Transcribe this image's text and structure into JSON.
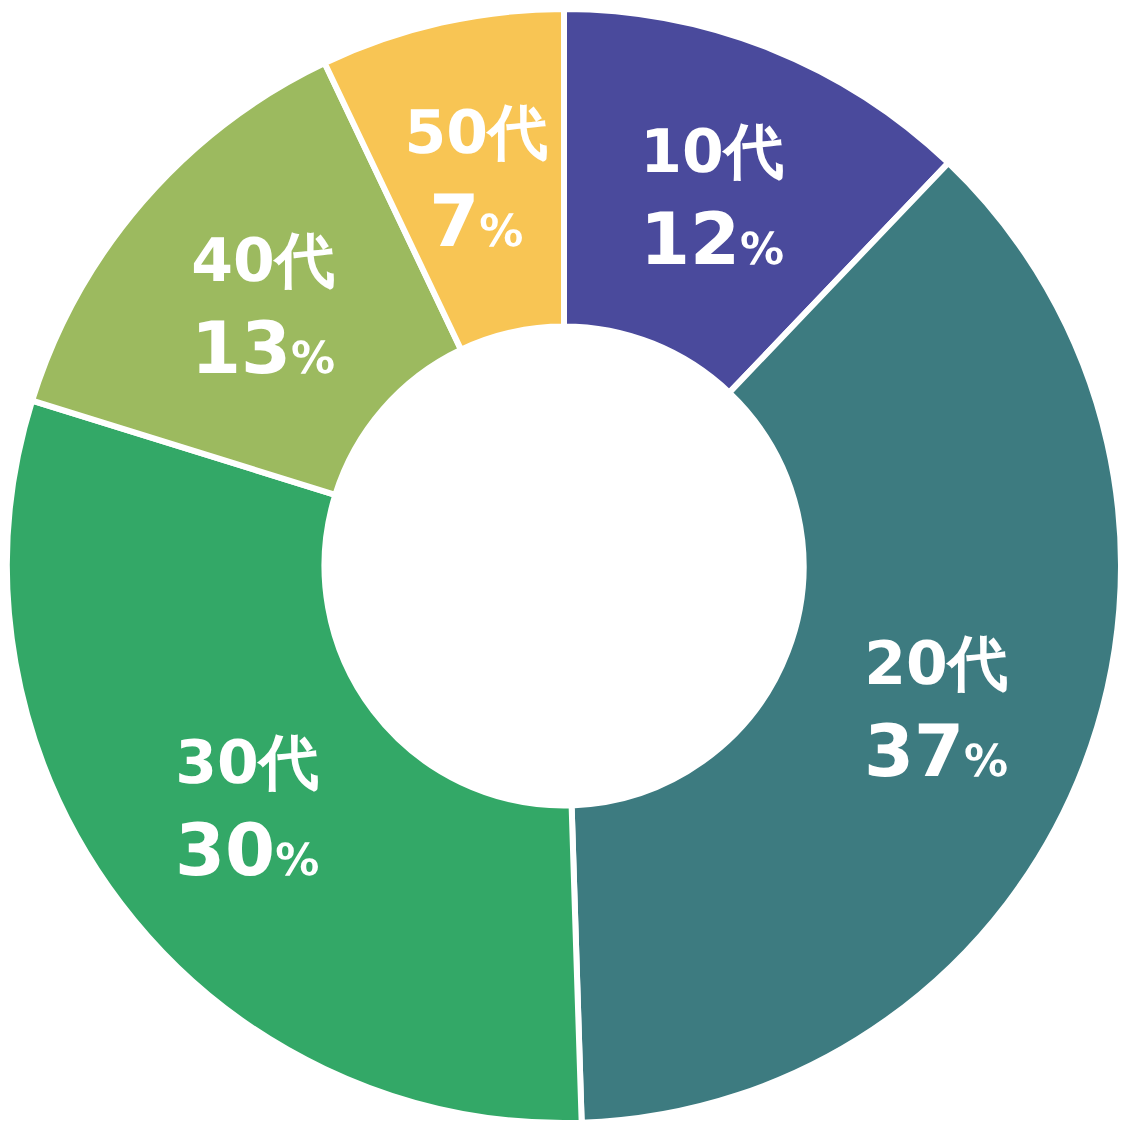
{
  "chart_data": {
    "type": "donut",
    "categories": [
      "10代",
      "20代",
      "30代",
      "40代",
      "50代"
    ],
    "values": [
      12,
      37,
      30,
      13,
      7
    ],
    "value_labels": [
      "12%",
      "37%",
      "30%",
      "13%",
      "7%"
    ],
    "colors": [
      "#4a4a9c",
      "#3d7b80",
      "#33a867",
      "#9cba5f",
      "#f8c554"
    ],
    "legend": false
  }
}
